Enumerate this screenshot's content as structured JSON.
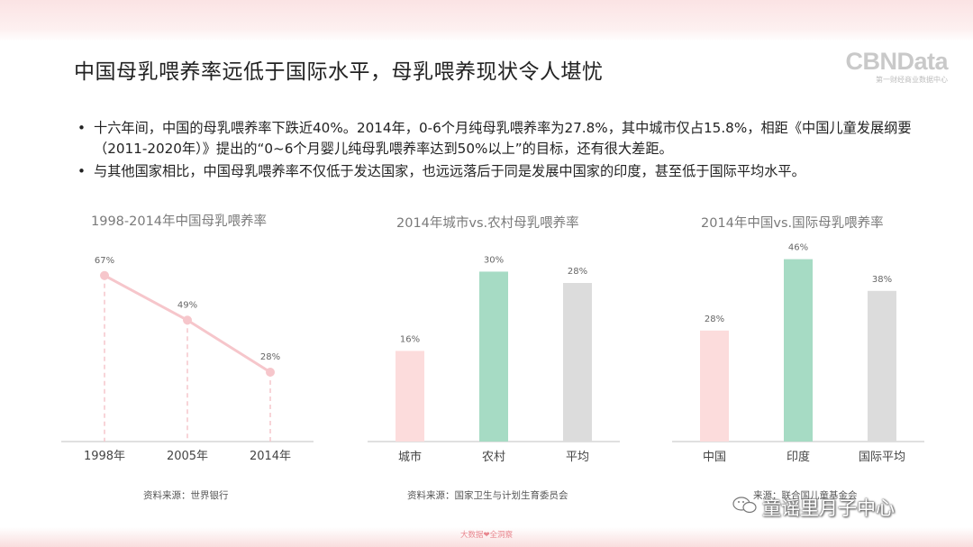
{
  "title": "中国母乳喂养率远低于国际水平，母乳喂养现状令人堪忧",
  "logo": {
    "main": "CBNData",
    "sub": "第一财经商业数据中心"
  },
  "bullets": [
    {
      "symbol": "•",
      "text": "十六年间，中国的母乳喂养率下跌近40%。2014年，0-6个月纯母乳喂养率为27.8%，其中城市仅占15.8%，相距《中国儿童发展纲要（2011-2020年）》提出的“0~6个月婴儿纯母乳喂养率达到50%以上”的目标，还有很大差距。"
    },
    {
      "symbol": "•",
      "text": "与其他国家相比，中国母乳喂养率不仅低于发达国家，也远远落后于同是发展中国家的印度，甚至低于国际平均水平。"
    }
  ],
  "chart_data": [
    {
      "type": "line",
      "title": "1998-2014年中国母乳喂养率",
      "categories": [
        "1998年",
        "2005年",
        "2014年"
      ],
      "values": [
        67,
        49,
        28
      ],
      "labels": [
        "67%",
        "49%",
        "28%"
      ],
      "ylim": [
        0,
        80
      ],
      "grid": false,
      "color": "#f6c6cb",
      "source": "资料来源：世界银行"
    },
    {
      "type": "bar",
      "title": "2014年城市vs.农村母乳喂养率",
      "categories": [
        "城市",
        "农村",
        "平均"
      ],
      "values": [
        16,
        30,
        28
      ],
      "labels": [
        "16%",
        "30%",
        "28%"
      ],
      "colors": [
        "#fcdcdc",
        "#a6dbc4",
        "#dcdcdc"
      ],
      "ylim": [
        0,
        35
      ],
      "grid": false,
      "source": "资料来源：国家卫生与计划生育委员会"
    },
    {
      "type": "bar",
      "title": "2014年中国vs.国际母乳喂养率",
      "categories": [
        "中国",
        "印度",
        "国际平均"
      ],
      "values": [
        28,
        46,
        38
      ],
      "labels": [
        "28%",
        "46%",
        "38%"
      ],
      "colors": [
        "#fcdcdc",
        "#a6dbc4",
        "#dcdcdc"
      ],
      "ylim": [
        0,
        50
      ],
      "grid": false,
      "source": "来源：联合国儿童基金会"
    }
  ],
  "watermark": "童谣里月子中心",
  "footer": "大数据❤全洞察"
}
